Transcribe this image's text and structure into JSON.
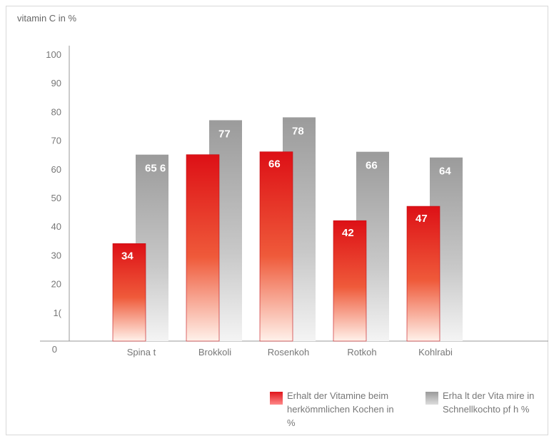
{
  "chart_data": {
    "type": "bar",
    "ylabel": "vitamin C in %",
    "ylim": [
      0,
      100
    ],
    "yticks": [
      "0",
      "1(",
      "20",
      "30",
      "40",
      "50",
      "60",
      "70",
      "80",
      "90",
      "100"
    ],
    "categories": [
      "Spina t",
      "Brokkoli",
      "Rosenkoh",
      "Rotkoh",
      "Kohlrabi"
    ],
    "series": [
      {
        "name": "Erhalt der Vitamine beim herkömmlichen Kochen in %",
        "color": "#e0141b",
        "values": [
          34,
          65,
          66,
          42,
          47
        ],
        "labels": [
          "34",
          "",
          "66",
          "42",
          "47"
        ]
      },
      {
        "name": "Erha lt der Vita mire in Schnellkochto pf h %",
        "color": "#9a9a9a",
        "values": [
          65,
          77,
          78,
          66,
          64
        ],
        "labels": [
          "65 6",
          "77",
          "78",
          "66",
          "64"
        ]
      }
    ],
    "legend_position": "bottom",
    "grid": false
  },
  "legend": {
    "red_text": "Erhalt der Vitamine beim herkömmlichen Kochen in %",
    "gray_text": "Erha lt der Vita mire in Schnellkochto pf h %"
  }
}
